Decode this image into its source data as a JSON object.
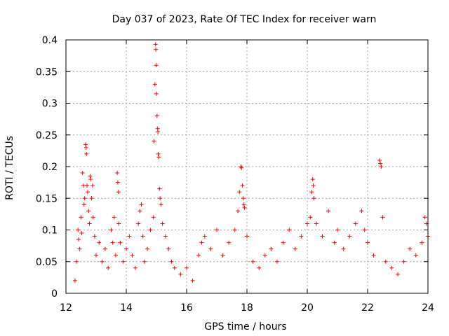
{
  "chart_data": {
    "type": "scatter",
    "title": "Day 037 of 2023, Rate Of TEC Index for receiver warn",
    "xlabel": "GPS time / hours",
    "ylabel": "ROTI / TECUs",
    "xlim": [
      12,
      24
    ],
    "ylim": [
      0,
      0.4
    ],
    "x_ticks": [
      12,
      14,
      16,
      18,
      20,
      22,
      24
    ],
    "x_tick_labels": [
      "12",
      "14",
      "16",
      "18",
      "20",
      "22",
      "24"
    ],
    "y_ticks": [
      0,
      0.05,
      0.1,
      0.15,
      0.2,
      0.25,
      0.3,
      0.35,
      0.4
    ],
    "y_tick_labels": [
      "0",
      "0.05",
      "0.1",
      "0.15",
      "0.2",
      "0.25",
      "0.3",
      "0.35",
      "0.4"
    ],
    "grid": true,
    "marker": "+",
    "marker_color": "#ff0000",
    "series": [
      {
        "name": "ROTI",
        "points": [
          [
            12.3,
            0.02
          ],
          [
            12.35,
            0.05
          ],
          [
            12.4,
            0.1
          ],
          [
            12.42,
            0.085
          ],
          [
            12.45,
            0.07
          ],
          [
            12.5,
            0.12
          ],
          [
            12.52,
            0.095
          ],
          [
            12.55,
            0.19
          ],
          [
            12.58,
            0.17
          ],
          [
            12.6,
            0.14
          ],
          [
            12.62,
            0.15
          ],
          [
            12.65,
            0.235
          ],
          [
            12.67,
            0.23
          ],
          [
            12.68,
            0.22
          ],
          [
            12.7,
            0.17
          ],
          [
            12.72,
            0.16
          ],
          [
            12.75,
            0.13
          ],
          [
            12.78,
            0.11
          ],
          [
            12.8,
            0.185
          ],
          [
            12.82,
            0.18
          ],
          [
            12.85,
            0.15
          ],
          [
            12.88,
            0.17
          ],
          [
            12.9,
            0.12
          ],
          [
            12.95,
            0.09
          ],
          [
            13.0,
            0.06
          ],
          [
            13.1,
            0.08
          ],
          [
            13.2,
            0.05
          ],
          [
            13.3,
            0.07
          ],
          [
            13.4,
            0.04
          ],
          [
            13.5,
            0.1
          ],
          [
            13.55,
            0.08
          ],
          [
            13.6,
            0.12
          ],
          [
            13.65,
            0.06
          ],
          [
            13.7,
            0.19
          ],
          [
            13.72,
            0.175
          ],
          [
            13.74,
            0.16
          ],
          [
            13.75,
            0.11
          ],
          [
            13.8,
            0.08
          ],
          [
            13.9,
            0.05
          ],
          [
            14.0,
            0.07
          ],
          [
            14.1,
            0.09
          ],
          [
            14.2,
            0.06
          ],
          [
            14.3,
            0.04
          ],
          [
            14.4,
            0.11
          ],
          [
            14.45,
            0.13
          ],
          [
            14.5,
            0.14
          ],
          [
            14.55,
            0.09
          ],
          [
            14.6,
            0.05
          ],
          [
            14.7,
            0.07
          ],
          [
            14.8,
            0.1
          ],
          [
            14.9,
            0.12
          ],
          [
            14.92,
            0.24
          ],
          [
            14.95,
            0.33
          ],
          [
            14.97,
            0.393
          ],
          [
            14.98,
            0.385
          ],
          [
            14.99,
            0.36
          ],
          [
            15.0,
            0.315
          ],
          [
            15.02,
            0.28
          ],
          [
            15.04,
            0.26
          ],
          [
            15.05,
            0.255
          ],
          [
            15.06,
            0.22
          ],
          [
            15.08,
            0.215
          ],
          [
            15.1,
            0.165
          ],
          [
            15.12,
            0.15
          ],
          [
            15.15,
            0.14
          ],
          [
            15.2,
            0.11
          ],
          [
            15.3,
            0.09
          ],
          [
            15.4,
            0.07
          ],
          [
            15.5,
            0.05
          ],
          [
            15.6,
            0.04
          ],
          [
            15.8,
            0.03
          ],
          [
            16.0,
            0.04
          ],
          [
            16.2,
            0.02
          ],
          [
            16.4,
            0.06
          ],
          [
            16.5,
            0.08
          ],
          [
            16.6,
            0.09
          ],
          [
            16.8,
            0.07
          ],
          [
            17.0,
            0.1
          ],
          [
            17.2,
            0.06
          ],
          [
            17.4,
            0.08
          ],
          [
            17.6,
            0.1
          ],
          [
            17.7,
            0.13
          ],
          [
            17.75,
            0.16
          ],
          [
            17.8,
            0.2
          ],
          [
            17.82,
            0.198
          ],
          [
            17.85,
            0.17
          ],
          [
            17.88,
            0.15
          ],
          [
            17.9,
            0.14
          ],
          [
            17.92,
            0.135
          ],
          [
            18.0,
            0.09
          ],
          [
            18.2,
            0.05
          ],
          [
            18.4,
            0.04
          ],
          [
            18.6,
            0.06
          ],
          [
            18.8,
            0.07
          ],
          [
            19.0,
            0.05
          ],
          [
            19.2,
            0.08
          ],
          [
            19.4,
            0.1
          ],
          [
            19.6,
            0.07
          ],
          [
            19.8,
            0.09
          ],
          [
            20.0,
            0.11
          ],
          [
            20.1,
            0.12
          ],
          [
            20.15,
            0.16
          ],
          [
            20.18,
            0.18
          ],
          [
            20.2,
            0.17
          ],
          [
            20.22,
            0.15
          ],
          [
            20.3,
            0.11
          ],
          [
            20.5,
            0.09
          ],
          [
            20.7,
            0.13
          ],
          [
            20.9,
            0.08
          ],
          [
            21.0,
            0.1
          ],
          [
            21.2,
            0.07
          ],
          [
            21.4,
            0.09
          ],
          [
            21.6,
            0.11
          ],
          [
            21.8,
            0.13
          ],
          [
            21.9,
            0.1
          ],
          [
            22.0,
            0.08
          ],
          [
            22.2,
            0.06
          ],
          [
            22.4,
            0.21
          ],
          [
            22.42,
            0.205
          ],
          [
            22.45,
            0.2
          ],
          [
            22.5,
            0.12
          ],
          [
            22.6,
            0.05
          ],
          [
            22.8,
            0.04
          ],
          [
            23.0,
            0.03
          ],
          [
            23.2,
            0.05
          ],
          [
            23.4,
            0.07
          ],
          [
            23.6,
            0.06
          ],
          [
            23.8,
            0.08
          ],
          [
            23.9,
            0.12
          ],
          [
            23.95,
            0.11
          ],
          [
            24.0,
            0.09
          ]
        ]
      }
    ]
  }
}
